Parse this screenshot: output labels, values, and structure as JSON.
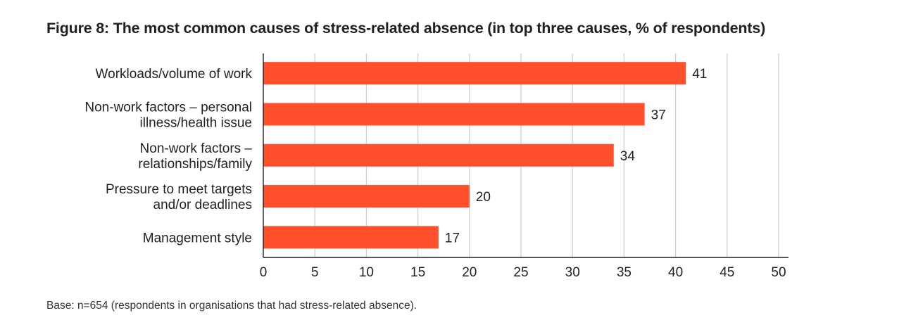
{
  "chart_data": {
    "type": "bar",
    "orientation": "horizontal",
    "title": "Figure 8: The most common causes of stress-related absence (in top three causes, % of respondents)",
    "categories": [
      [
        "Workloads/volume of work"
      ],
      [
        "Non-work factors – personal",
        "illness/health issue"
      ],
      [
        "Non-work factors –",
        "relationships/family"
      ],
      [
        "Pressure to meet targets",
        "and/or deadlines"
      ],
      [
        "Management style"
      ]
    ],
    "values": [
      41,
      37,
      34,
      20,
      17
    ],
    "value_labels": [
      "41",
      "37",
      "34",
      "20",
      "17"
    ],
    "xlim": [
      0,
      50
    ],
    "xticks": [
      "0",
      "5",
      "10",
      "15",
      "20",
      "25",
      "30",
      "35",
      "40",
      "45",
      "50"
    ],
    "bar_color": "#ff4f2b",
    "grid": true,
    "xlabel": "",
    "ylabel": ""
  },
  "footnote": "Base: n=654 (respondents in organisations that had stress-related absence)."
}
